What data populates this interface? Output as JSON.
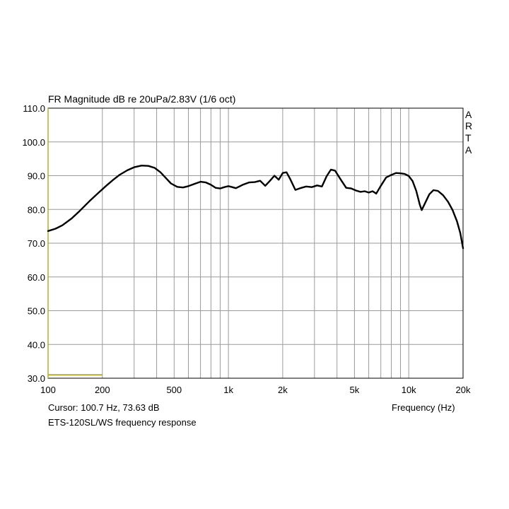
{
  "chart_data": {
    "type": "line",
    "title": "FR Magnitude dB re 20uPa/2.83V (1/6 oct)",
    "xlabel": "Frequency (Hz)",
    "ylabel": "",
    "xscale": "log",
    "xlim": [
      100,
      20000
    ],
    "ylim": [
      30,
      110
    ],
    "grid": true,
    "y_ticks": [
      "110.0",
      "100.0",
      "90.0",
      "80.0",
      "70.0",
      "60.0",
      "50.0",
      "40.0",
      "30.0"
    ],
    "x_ticks": [
      {
        "value": 100,
        "label": "100"
      },
      {
        "value": 200,
        "label": "200"
      },
      {
        "value": 500,
        "label": "500"
      },
      {
        "value": 1000,
        "label": "1k"
      },
      {
        "value": 2000,
        "label": "2k"
      },
      {
        "value": 5000,
        "label": "5k"
      },
      {
        "value": 10000,
        "label": "10k"
      },
      {
        "value": 20000,
        "label": "20k"
      }
    ],
    "series": [
      {
        "color": "#000000",
        "points": [
          [
            100,
            73.6
          ],
          [
            110,
            74.3
          ],
          [
            120,
            75.3
          ],
          [
            135,
            77.3
          ],
          [
            150,
            79.6
          ],
          [
            170,
            82.5
          ],
          [
            190,
            84.9
          ],
          [
            210,
            87.0
          ],
          [
            230,
            88.8
          ],
          [
            250,
            90.3
          ],
          [
            275,
            91.6
          ],
          [
            300,
            92.5
          ],
          [
            330,
            93.0
          ],
          [
            360,
            92.9
          ],
          [
            390,
            92.3
          ],
          [
            420,
            91.0
          ],
          [
            450,
            89.3
          ],
          [
            480,
            87.7
          ],
          [
            520,
            86.7
          ],
          [
            560,
            86.5
          ],
          [
            600,
            86.9
          ],
          [
            650,
            87.6
          ],
          [
            700,
            88.2
          ],
          [
            750,
            88.0
          ],
          [
            800,
            87.3
          ],
          [
            850,
            86.4
          ],
          [
            900,
            86.2
          ],
          [
            950,
            86.6
          ],
          [
            1000,
            86.9
          ],
          [
            1050,
            86.6
          ],
          [
            1100,
            86.3
          ],
          [
            1200,
            87.3
          ],
          [
            1300,
            88.0
          ],
          [
            1400,
            88.1
          ],
          [
            1500,
            88.5
          ],
          [
            1600,
            87.0
          ],
          [
            1700,
            88.5
          ],
          [
            1800,
            90.0
          ],
          [
            1900,
            88.8
          ],
          [
            2000,
            90.8
          ],
          [
            2100,
            91.0
          ],
          [
            2200,
            89.0
          ],
          [
            2350,
            85.8
          ],
          [
            2500,
            86.3
          ],
          [
            2700,
            86.8
          ],
          [
            2900,
            86.6
          ],
          [
            3100,
            87.1
          ],
          [
            3300,
            86.8
          ],
          [
            3500,
            89.8
          ],
          [
            3700,
            91.8
          ],
          [
            3900,
            91.5
          ],
          [
            4200,
            88.8
          ],
          [
            4500,
            86.4
          ],
          [
            4800,
            86.2
          ],
          [
            5100,
            85.6
          ],
          [
            5400,
            85.2
          ],
          [
            5700,
            85.4
          ],
          [
            6000,
            85.0
          ],
          [
            6300,
            85.4
          ],
          [
            6600,
            84.7
          ],
          [
            7000,
            87.0
          ],
          [
            7500,
            89.5
          ],
          [
            8000,
            90.2
          ],
          [
            8500,
            90.8
          ],
          [
            9000,
            90.7
          ],
          [
            9500,
            90.5
          ],
          [
            10000,
            89.9
          ],
          [
            10500,
            88.4
          ],
          [
            11000,
            85.5
          ],
          [
            11500,
            81.5
          ],
          [
            11800,
            79.8
          ],
          [
            12300,
            81.8
          ],
          [
            13000,
            84.5
          ],
          [
            13700,
            85.7
          ],
          [
            14500,
            85.5
          ],
          [
            15500,
            84.2
          ],
          [
            16500,
            82.3
          ],
          [
            17500,
            79.8
          ],
          [
            18500,
            76.5
          ],
          [
            19300,
            73.0
          ],
          [
            20000,
            68.5
          ]
        ]
      }
    ],
    "cursor_marker": {
      "x_range": [
        100,
        200
      ],
      "y": 31.0,
      "color": "#b2ad2a"
    }
  },
  "text": {
    "arta": [
      "A",
      "R",
      "T",
      "A"
    ],
    "cursor_readout": "Cursor: 100.7 Hz, 73.63 dB",
    "description": "ETS-120SL/WS frequency response"
  }
}
